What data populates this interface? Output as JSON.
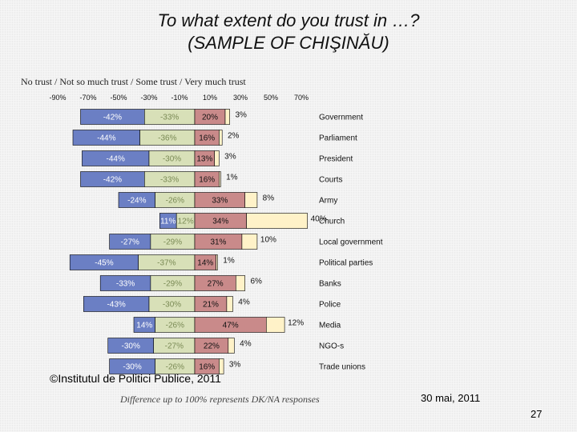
{
  "title_line1": "To what extent do you trust in …?",
  "title_line2": "(SAMPLE OF CHIŞINĂU)",
  "footer": {
    "credit": "©Institutul de Politici Publice, 2011",
    "note": "Difference up to 100% represents DK/NA responses",
    "date": "30 mai, 2011",
    "page": "27"
  },
  "chart_data": {
    "type": "bar",
    "orientation": "horizontal",
    "stacked": "diverging",
    "legend_title": "No trust / Not so much trust / Some trust / Very much trust",
    "xaxis": {
      "range": [
        -90,
        70
      ],
      "ticks": [
        -90,
        -70,
        -50,
        -30,
        -10,
        10,
        30,
        50,
        70
      ],
      "tick_labels": [
        "-90%",
        "-70%",
        "-50%",
        "-30%",
        "-10%",
        "10%",
        "30%",
        "50%",
        "70%"
      ]
    },
    "series_names": [
      "No trust",
      "Not so much trust",
      "Some trust",
      "Very much trust"
    ],
    "colors": {
      "no_trust": "#6b7fc4",
      "not_so_much": "#d8e0b8",
      "some": "#c98a8a",
      "very_much": "#fff2c8",
      "outline": "#000000"
    },
    "rows": [
      {
        "category": "Government",
        "no_trust": 42,
        "no_trust_label": "-42%",
        "not_so_much": 33,
        "not_so_much_label": "-33%",
        "some": 20,
        "some_label": "20%",
        "very_much": 3,
        "very_much_label": "3%"
      },
      {
        "category": "Parliament",
        "no_trust": 44,
        "no_trust_label": "-44%",
        "not_so_much": 36,
        "not_so_much_label": "-36%",
        "some": 16,
        "some_label": "16%",
        "very_much": 2,
        "very_much_label": "2%"
      },
      {
        "category": "President",
        "no_trust": 44,
        "no_trust_label": "-44%",
        "not_so_much": 30,
        "not_so_much_label": "-30%",
        "some": 13,
        "some_label": "13%",
        "very_much": 3,
        "very_much_label": "3%"
      },
      {
        "category": "Courts",
        "no_trust": 42,
        "no_trust_label": "-42%",
        "not_so_much": 33,
        "not_so_much_label": "-33%",
        "some": 16,
        "some_label": "16%",
        "very_much": 1,
        "very_much_label": "1%"
      },
      {
        "category": "Army",
        "no_trust": 24,
        "no_trust_label": "-24%",
        "not_so_much": 26,
        "not_so_much_label": "-26%",
        "some": 33,
        "some_label": "33%",
        "very_much": 8,
        "very_much_label": "8%"
      },
      {
        "category": "Church",
        "no_trust": 11,
        "no_trust_label": "11%",
        "not_so_much": 12,
        "not_so_much_label": "12%",
        "some": 34,
        "some_label": "34%",
        "very_much": 40,
        "very_much_label": "40%"
      },
      {
        "category": "Local government",
        "no_trust": 27,
        "no_trust_label": "-27%",
        "not_so_much": 29,
        "not_so_much_label": "-29%",
        "some": 31,
        "some_label": "31%",
        "very_much": 10,
        "very_much_label": "10%"
      },
      {
        "category": "Political parties",
        "no_trust": 45,
        "no_trust_label": "-45%",
        "not_so_much": 37,
        "not_so_much_label": "-37%",
        "some": 14,
        "some_label": "14%",
        "very_much": 1,
        "very_much_label": "1%"
      },
      {
        "category": "Banks",
        "no_trust": 33,
        "no_trust_label": "-33%",
        "not_so_much": 29,
        "not_so_much_label": "-29%",
        "some": 27,
        "some_label": "27%",
        "very_much": 6,
        "very_much_label": "6%"
      },
      {
        "category": "Police",
        "no_trust": 43,
        "no_trust_label": "-43%",
        "not_so_much": 30,
        "not_so_much_label": "-30%",
        "some": 21,
        "some_label": "21%",
        "very_much": 4,
        "very_much_label": "4%"
      },
      {
        "category": "Media",
        "no_trust": 14,
        "no_trust_label": "14%",
        "not_so_much": 26,
        "not_so_much_label": "-26%",
        "some": 47,
        "some_label": "47%",
        "very_much": 12,
        "very_much_label": "12%"
      },
      {
        "category": "NGO-s",
        "no_trust": 30,
        "no_trust_label": "-30%",
        "not_so_much": 27,
        "not_so_much_label": "-27%",
        "some": 22,
        "some_label": "22%",
        "very_much": 4,
        "very_much_label": "4%"
      },
      {
        "category": "Trade unions",
        "no_trust": 30,
        "no_trust_label": "-30%",
        "not_so_much": 26,
        "not_so_much_label": "-26%",
        "some": 16,
        "some_label": "16%",
        "very_much": 3,
        "very_much_label": "3%"
      }
    ]
  }
}
